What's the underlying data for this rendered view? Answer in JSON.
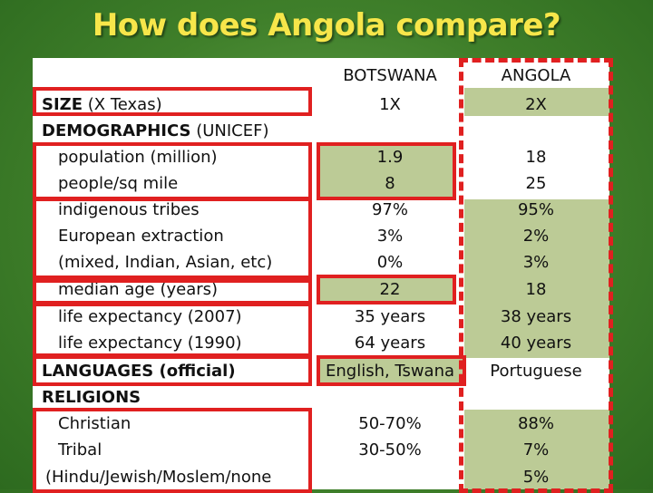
{
  "title": "How does Angola compare?",
  "headers": {
    "botswana": "BOTSWANA",
    "angola": "ANGOLA"
  },
  "rows": {
    "size": {
      "label_bold": "SIZE",
      "label_rest": " (X Texas)",
      "botswana": "1X",
      "angola": "2X"
    },
    "demographics": {
      "label_bold": "DEMOGRAPHICS",
      "label_rest": " (UNICEF)"
    },
    "population": {
      "label": "population (million)",
      "botswana": "1.9",
      "angola": "18"
    },
    "density": {
      "label": "people/sq mile",
      "botswana": "8",
      "angola": "25"
    },
    "tribes": {
      "label": "indigenous tribes",
      "botswana": "97%",
      "angola": "95%"
    },
    "european": {
      "label": "European extraction",
      "botswana": "3%",
      "angola": "2%"
    },
    "mixed": {
      "label": "(mixed, Indian, Asian, etc)",
      "botswana": "0%",
      "angola": "3%"
    },
    "median_age": {
      "label": "median age (years)",
      "botswana": "22",
      "angola": "18"
    },
    "life_2007": {
      "label": "life expectancy (2007)",
      "botswana": "35 years",
      "angola": "38 years"
    },
    "life_1990": {
      "label": "life expectancy (1990)",
      "botswana": "64 years",
      "angola": "40 years"
    },
    "languages": {
      "label": "LANGUAGES (official)",
      "botswana": "English, Tswana",
      "angola": "Portuguese"
    },
    "religions": {
      "label": "RELIGIONS"
    },
    "christian": {
      "label": "Christian",
      "botswana": "50-70%",
      "angola": "88%"
    },
    "tribal": {
      "label": "Tribal",
      "botswana": "30-50%",
      "angola": "7%"
    },
    "other": {
      "label": "(Hindu/Jewish/Moslem/none",
      "angola": "5%"
    }
  },
  "colors": {
    "highlight": "#bccb96",
    "outline": "#e02020",
    "title": "#f7e64a",
    "background": "#4a8a30"
  }
}
